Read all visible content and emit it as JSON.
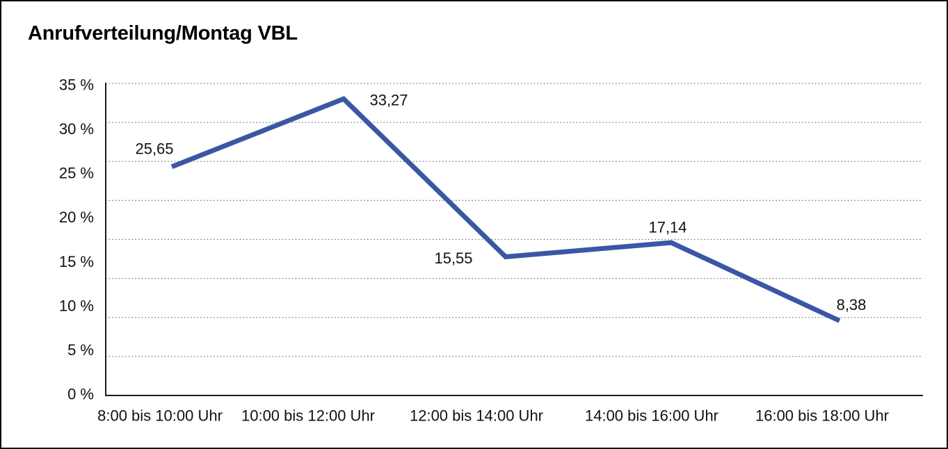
{
  "chart_data": {
    "type": "line",
    "title": "Anrufverteilung/Montag VBL",
    "categories": [
      "8:00 bis 10:00 Uhr",
      "10:00 bis 12:00 Uhr",
      "12:00 bis 14:00 Uhr",
      "14:00 bis 16:00 Uhr",
      "16:00 bis 18:00 Uhr"
    ],
    "values": [
      25.65,
      33.27,
      15.55,
      17.14,
      8.38
    ],
    "value_labels": [
      "25,65",
      "33,27",
      "15,55",
      "17,14",
      "8,38"
    ],
    "y_ticks": [
      "35 %",
      "30 %",
      "25 %",
      "20 %",
      "15 %",
      "10 %",
      "5 %",
      "0 %"
    ],
    "y_tick_values": [
      35,
      30,
      25,
      20,
      15,
      10,
      5,
      0
    ],
    "ylim": [
      0,
      35
    ],
    "xlabel": "",
    "ylabel": "",
    "grid": true,
    "grid_divisions": 8,
    "legend": "none",
    "line_color": "#3a57a5",
    "grid_color": "#6e6e6e",
    "axis_color": "#1a1a1a",
    "text_color": "#111111"
  }
}
